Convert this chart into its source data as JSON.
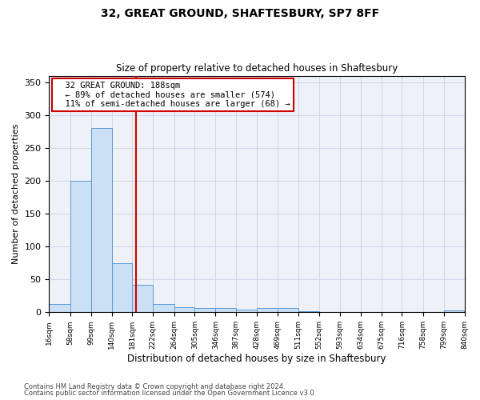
{
  "title1": "32, GREAT GROUND, SHAFTESBURY, SP7 8FF",
  "title2": "Size of property relative to detached houses in Shaftesbury",
  "xlabel": "Distribution of detached houses by size in Shaftesbury",
  "ylabel": "Number of detached properties",
  "annotation_line1": "32 GREAT GROUND: 188sqm",
  "annotation_line2": "← 89% of detached houses are smaller (574)",
  "annotation_line3": "11% of semi-detached houses are larger (68) →",
  "property_size_sqm": 188,
  "bin_edges": [
    16,
    58,
    99,
    140,
    181,
    222,
    264,
    305,
    346,
    387,
    428,
    469,
    511,
    552,
    593,
    634,
    675,
    716,
    758,
    799,
    840
  ],
  "bar_heights": [
    13,
    200,
    280,
    75,
    42,
    13,
    8,
    6,
    6,
    4,
    6,
    6,
    2,
    0,
    0,
    0,
    0,
    0,
    0,
    3
  ],
  "bar_color": "#cce0f5",
  "bar_edge_color": "#5b9bd5",
  "vline_color": "#cc0000",
  "annotation_box_edge_color": "#cc0000",
  "annotation_box_face_color": "#ffffff",
  "grid_color": "#d0d8e8",
  "background_color": "#eef2f8",
  "ylim": [
    0,
    360
  ],
  "yticks": [
    0,
    50,
    100,
    150,
    200,
    250,
    300,
    350
  ],
  "footnote1": "Contains HM Land Registry data © Crown copyright and database right 2024.",
  "footnote2": "Contains public sector information licensed under the Open Government Licence v3.0."
}
